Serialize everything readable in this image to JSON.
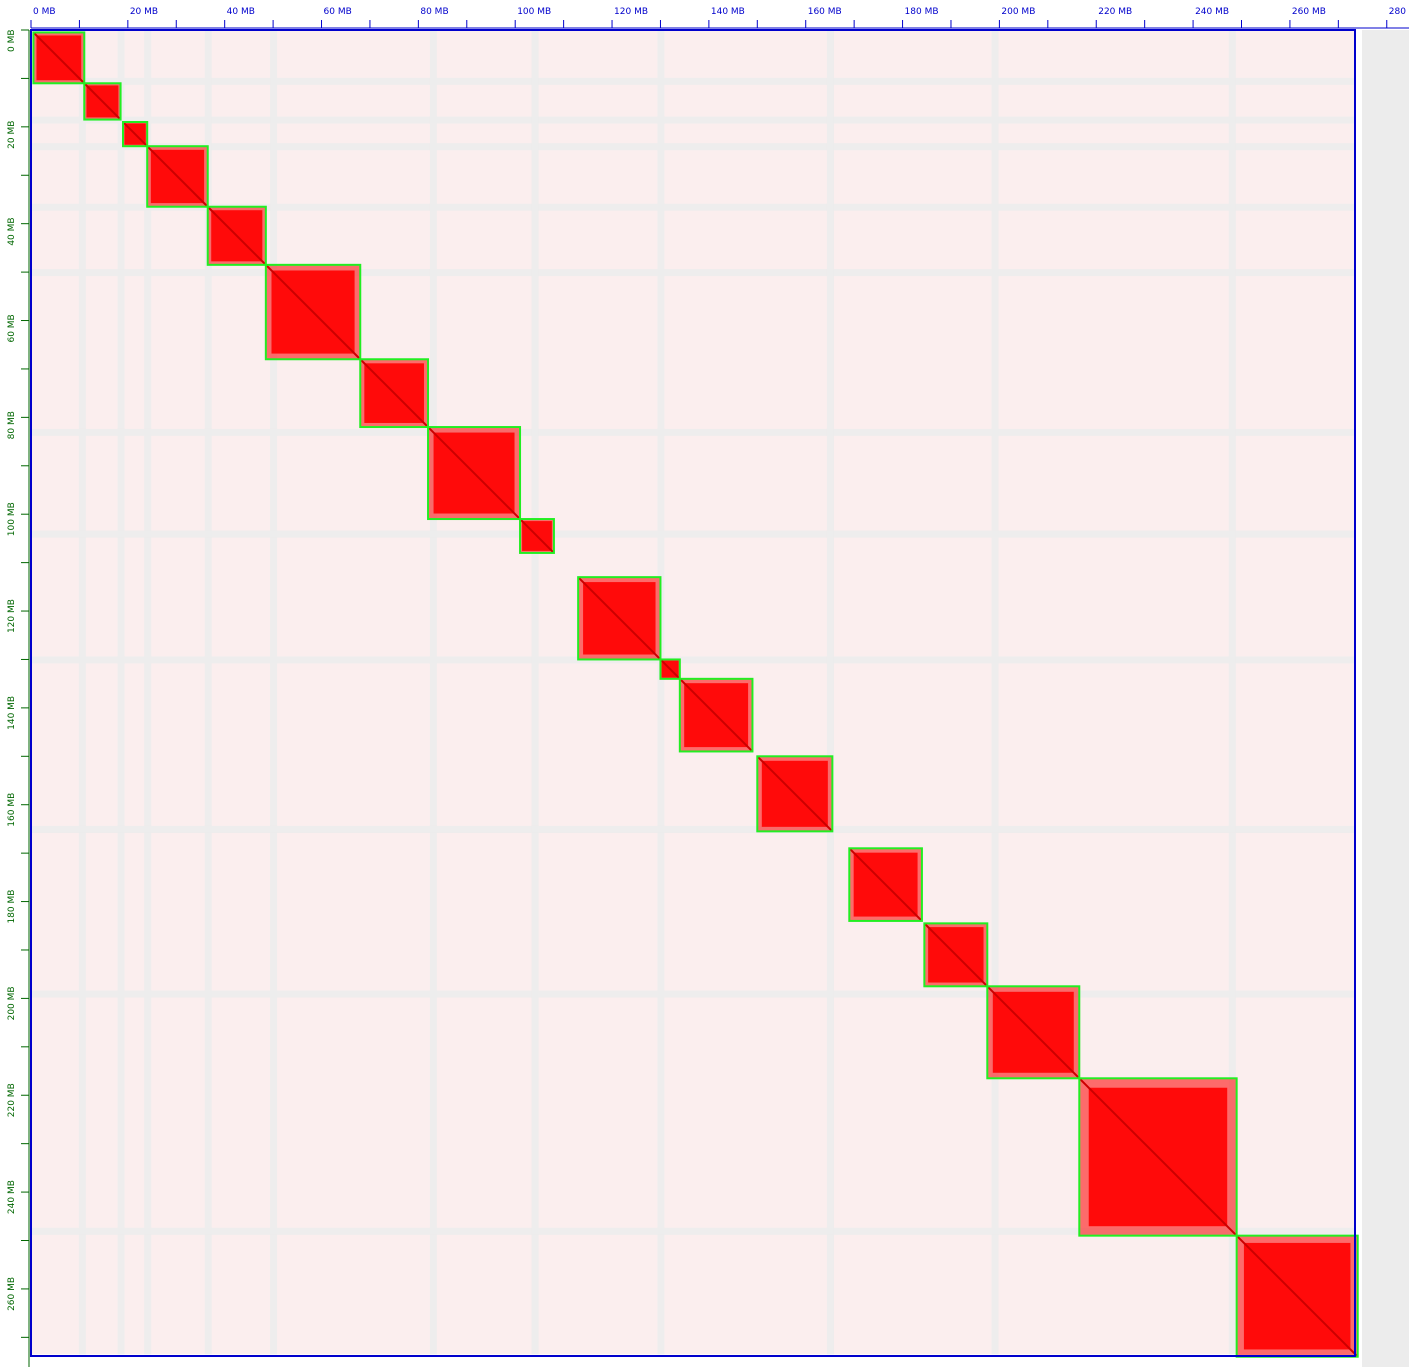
{
  "chart_data": {
    "type": "heatmap",
    "title": "",
    "x_axis": {
      "unit": "MB",
      "range": [
        0,
        280
      ],
      "ticks": [
        "0 MB",
        "20 MB",
        "40 MB",
        "60 MB",
        "80 MB",
        "100 MB",
        "120 MB",
        "140 MB",
        "160 MB",
        "180 MB",
        "200 MB",
        "220 MB",
        "240 MB",
        "260 MB",
        "280 MB"
      ]
    },
    "y_axis": {
      "unit": "MB",
      "range": [
        0,
        273
      ],
      "ticks": [
        "0 MB",
        "20 MB",
        "40 MB",
        "60 MB",
        "80 MB",
        "100 MB",
        "120 MB",
        "140 MB",
        "160 MB",
        "180 MB",
        "200 MB",
        "220 MB",
        "240 MB",
        "260 MB"
      ]
    },
    "matrix_extent_mb": 273.5,
    "colors": {
      "contact": "#ff0000",
      "background": "#fbeeee",
      "gap": "#ececec",
      "block_outline": "#22ee22",
      "frame": "#0000cc",
      "x_axis_text": "#0000cc",
      "y_axis_text": "#006600"
    },
    "blocks_mb": [
      [
        0.5,
        11
      ],
      [
        11,
        18.5
      ],
      [
        19,
        24
      ],
      [
        24,
        36.5
      ],
      [
        36.5,
        48.5
      ],
      [
        48.5,
        68
      ],
      [
        68,
        82
      ],
      [
        82,
        101
      ],
      [
        101,
        108
      ],
      [
        113,
        130
      ],
      [
        130,
        134
      ],
      [
        134,
        149
      ],
      [
        150,
        165.5
      ],
      [
        169,
        184
      ],
      [
        184.5,
        197.5
      ],
      [
        197.5,
        216.5
      ],
      [
        216.5,
        249
      ],
      [
        249,
        274
      ]
    ],
    "gap_positions_mb": [
      10.5,
      18.5,
      24,
      36.5,
      50,
      83,
      104,
      130,
      165,
      199,
      248
    ]
  }
}
